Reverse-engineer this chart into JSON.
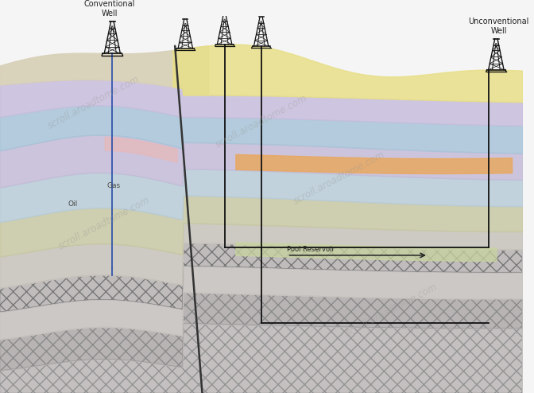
{
  "figsize": [
    6.72,
    4.94
  ],
  "dpi": 100,
  "bg_color": "#f5f5f5",
  "conventional_well_label": "Conventional\nWell",
  "unconventional_well_label": "Unconventional\nWell",
  "gas_label": "Gas",
  "oil_label": "Oil",
  "pool_reservoir_label": "Pool Reservoir",
  "watermark": "scroll.aroadtome.com",
  "watermark_color": "#999999",
  "watermark_alpha": 0.35,
  "layer_colors": {
    "surface_tan": "#d8d0b8",
    "yellow": "#e8df88",
    "purple_top": "#c8bedd",
    "blue": "#a8c4d8",
    "green": "#c0ccb0",
    "lavender": "#c4bcd8",
    "light_blue": "#b8ccd8",
    "grey": "#c8c8c4",
    "olive": "#c8c8a4",
    "hatch_grey": "#c0bcbc",
    "hatch_dark": "#b0acac",
    "deep_hatch": "#b8b4b4",
    "deepest": "#c4c0c0",
    "orange": "#e8a860",
    "pink": "#e8b8b8"
  }
}
